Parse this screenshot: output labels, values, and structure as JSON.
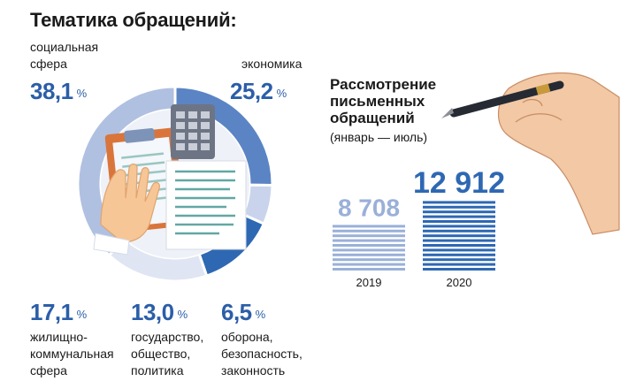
{
  "title": "Тематика обращений:",
  "chart_data": [
    {
      "type": "pie",
      "title": "Тематика обращений:",
      "unit": "%",
      "slices": [
        {
          "label": "экономика",
          "value": 25.2,
          "display": "25,2",
          "color": "#5b84c4"
        },
        {
          "label": "оборона,\nбезопасность,\nзаконность",
          "value": 6.5,
          "display": "6,5",
          "color": "#c9d4ec"
        },
        {
          "label": "государство,\nобщество,\nполитика",
          "value": 13.0,
          "display": "13,0",
          "color": "#2e68b3"
        },
        {
          "label": "жилищно-\nкоммунальная\nсфера",
          "value": 17.1,
          "display": "17,1",
          "color": "#dfe5f3"
        },
        {
          "label": "социальная\nсфера",
          "value": 38.1,
          "display": "38,1",
          "color": "#b0c0e1"
        }
      ]
    },
    {
      "type": "bar",
      "title": "Рассмотрение\nписьменных\nобращений",
      "subtitle": "(январь — июль)",
      "categories": [
        "2019",
        "2020"
      ],
      "values": [
        8708,
        12912
      ],
      "value_labels": [
        "8 708",
        "12 912"
      ],
      "colors": [
        "#9ab0d8",
        "#2e68b3"
      ]
    }
  ]
}
